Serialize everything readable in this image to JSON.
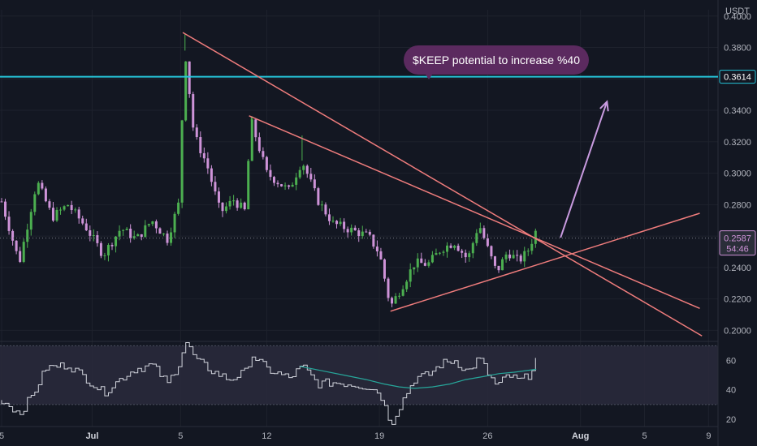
{
  "chart_data": {
    "type": "candlestick",
    "quote_currency": "USDT",
    "price_axis": {
      "ticks": [
        "0.4000",
        "0.3800",
        "0.3600",
        "0.3400",
        "0.3200",
        "0.3000",
        "0.2800",
        "0.2600",
        "0.2400",
        "0.2200",
        "0.2000"
      ],
      "range": [
        0.193,
        0.404
      ]
    },
    "rsi_axis": {
      "ticks": [
        "60",
        "40",
        "20"
      ],
      "range": [
        15,
        73
      ],
      "band": [
        30,
        70
      ]
    },
    "time_axis": {
      "ticks": [
        "5",
        "Jul",
        "5",
        "12",
        "19",
        "26",
        "Aug",
        "5",
        "9"
      ],
      "range_days": [
        0,
        32
      ]
    },
    "horizontal_level": {
      "price": 0.3614,
      "label": "0.3614",
      "color": "#26c6da"
    },
    "current_price": {
      "price": 0.2587,
      "label": "0.2587",
      "countdown": "54:46",
      "color": "#ce93d8"
    },
    "annotation": {
      "text": "$KEEP potential to increase %40",
      "color": "#5b2a5f"
    },
    "colors": {
      "up": "#4caf50",
      "down": "#ce93d8",
      "trendline": "#ef7c7c",
      "projection": "#c99be0",
      "rsi": "#d1d4dc",
      "rsi_ma": "#26a69a"
    },
    "trendlines": [
      {
        "from": [
          8.2,
          0.3895
        ],
        "to": [
          31.7,
          0.1965
        ]
      },
      {
        "from": [
          11.2,
          0.3365
        ],
        "to": [
          31.6,
          0.214
        ]
      },
      {
        "from": [
          17.6,
          0.2122
        ],
        "to": [
          31.6,
          0.2745
        ]
      }
    ],
    "projection_arrow": {
      "from": [
        25.3,
        0.259
      ],
      "to": [
        27.4,
        0.3455
      ]
    },
    "anchors": [
      [
        0,
        0.282
      ],
      [
        0.8,
        0.243
      ],
      [
        1.6,
        0.295
      ],
      [
        2.3,
        0.272
      ],
      [
        3.0,
        0.28
      ],
      [
        3.8,
        0.266
      ],
      [
        4.6,
        0.248
      ],
      [
        5.4,
        0.265
      ],
      [
        6.1,
        0.258
      ],
      [
        6.8,
        0.27
      ],
      [
        7.5,
        0.258
      ],
      [
        8.0,
        0.28
      ],
      [
        8.3,
        0.378
      ],
      [
        8.7,
        0.325
      ],
      [
        9.3,
        0.305
      ],
      [
        9.9,
        0.275
      ],
      [
        10.5,
        0.283
      ],
      [
        11.0,
        0.276
      ],
      [
        11.3,
        0.333
      ],
      [
        12.0,
        0.3
      ],
      [
        13.0,
        0.289
      ],
      [
        13.6,
        0.308
      ],
      [
        14.3,
        0.283
      ],
      [
        15.0,
        0.268
      ],
      [
        15.8,
        0.264
      ],
      [
        16.6,
        0.26
      ],
      [
        17.1,
        0.249
      ],
      [
        17.6,
        0.215
      ],
      [
        18.2,
        0.23
      ],
      [
        18.7,
        0.243
      ],
      [
        19.3,
        0.242
      ],
      [
        19.9,
        0.252
      ],
      [
        20.5,
        0.256
      ],
      [
        21.1,
        0.245
      ],
      [
        21.6,
        0.268
      ],
      [
        22.0,
        0.252
      ],
      [
        22.4,
        0.237
      ],
      [
        22.9,
        0.25
      ],
      [
        23.4,
        0.244
      ],
      [
        23.8,
        0.25
      ],
      [
        24.2,
        0.264
      ]
    ],
    "rsi_anchors": [
      [
        0,
        33
      ],
      [
        0.8,
        24
      ],
      [
        1.4,
        37
      ],
      [
        2.0,
        55
      ],
      [
        3.0,
        57
      ],
      [
        3.8,
        48
      ],
      [
        4.6,
        38
      ],
      [
        5.4,
        48
      ],
      [
        6.0,
        54
      ],
      [
        6.8,
        57
      ],
      [
        7.5,
        44
      ],
      [
        8.0,
        58
      ],
      [
        8.3,
        73
      ],
      [
        8.8,
        60
      ],
      [
        9.6,
        52
      ],
      [
        10.3,
        47
      ],
      [
        11.0,
        52
      ],
      [
        11.3,
        64
      ],
      [
        12.0,
        54
      ],
      [
        13.0,
        48
      ],
      [
        13.6,
        56
      ],
      [
        14.3,
        44
      ],
      [
        15.0,
        45
      ],
      [
        15.8,
        44
      ],
      [
        16.6,
        42
      ],
      [
        17.1,
        38
      ],
      [
        17.6,
        17
      ],
      [
        18.2,
        35
      ],
      [
        18.7,
        48
      ],
      [
        19.3,
        50
      ],
      [
        19.9,
        58
      ],
      [
        20.5,
        60
      ],
      [
        21.1,
        52
      ],
      [
        21.6,
        62
      ],
      [
        22.0,
        51
      ],
      [
        22.4,
        42
      ],
      [
        22.9,
        50
      ],
      [
        23.4,
        46
      ],
      [
        23.8,
        49
      ],
      [
        24.2,
        62
      ]
    ],
    "rsi_ma": [
      [
        13.5,
        56
      ],
      [
        14.5,
        53
      ],
      [
        15.5,
        50
      ],
      [
        16.5,
        47
      ],
      [
        17.3,
        44
      ],
      [
        18.0,
        42
      ],
      [
        18.7,
        41
      ],
      [
        19.5,
        42
      ],
      [
        20.3,
        44
      ],
      [
        21.0,
        47
      ],
      [
        21.8,
        49
      ],
      [
        22.5,
        51
      ],
      [
        23.2,
        52
      ],
      [
        24.2,
        54
      ]
    ]
  }
}
